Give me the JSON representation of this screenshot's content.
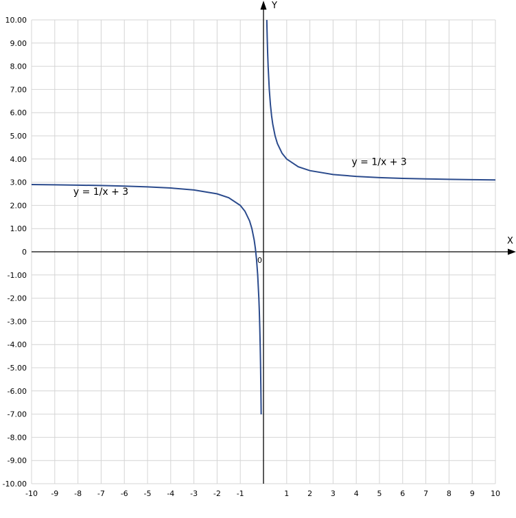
{
  "chart_data": {
    "type": "line",
    "x_axis_name": "X",
    "y_axis_name": "Y",
    "origin_label": "0",
    "xlim": [
      -10,
      10
    ],
    "ylim": [
      -10,
      10
    ],
    "x_ticks": [
      -10,
      -9,
      -8,
      -7,
      -6,
      -5,
      -4,
      -3,
      -2,
      -1,
      1,
      2,
      3,
      4,
      5,
      6,
      7,
      8,
      9,
      10
    ],
    "x_tick_labels": [
      "-10",
      "-9",
      "-8",
      "-7",
      "-6",
      "-5",
      "-4",
      "-3",
      "-2",
      "-1",
      "1",
      "2",
      "3",
      "4",
      "5",
      "6",
      "7",
      "8",
      "9",
      "10"
    ],
    "y_ticks": [
      10,
      9,
      8,
      7,
      6,
      5,
      4,
      3,
      2,
      1,
      0,
      -1,
      -2,
      -3,
      -4,
      -5,
      -6,
      -7,
      -8,
      -9,
      -10
    ],
    "y_tick_labels": [
      "10.00",
      "9.00",
      "8.00",
      "7.00",
      "6.00",
      "5.00",
      "4.00",
      "3.00",
      "2.00",
      "1.00",
      "0",
      "-1.00",
      "-2.00",
      "-3.00",
      "-4.00",
      "-5.00",
      "-6.00",
      "-7.00",
      "-8.00",
      "-9.00",
      "-10.00"
    ],
    "grid": true,
    "series": [
      {
        "function": "y = 1/x + 3",
        "color": "#2a4a8c",
        "branches": [
          {
            "x": [
              -10,
              -9,
              -8,
              -7,
              -6,
              -5,
              -4,
              -3,
              -2,
              -1.5,
              -1,
              -0.8,
              -0.6,
              -0.5,
              -0.4,
              -0.35,
              -0.3,
              -0.25,
              -0.2,
              -0.18,
              -0.16,
              -0.14,
              -0.13,
              -0.125,
              -0.12,
              -0.115,
              -0.11,
              -0.105,
              -0.1,
              -0.0999
            ]
          },
          {
            "x": [
              0.1429,
              0.15,
              0.16,
              0.18,
              0.2,
              0.25,
              0.3,
              0.35,
              0.4,
              0.5,
              0.6,
              0.8,
              1,
              1.5,
              2,
              3,
              4,
              5,
              6,
              7,
              8,
              9,
              10
            ]
          }
        ]
      }
    ],
    "annotations": [
      {
        "text": "y = 1/x + 3",
        "x": -8.2,
        "y": 2.45
      },
      {
        "text": "y = 1/x + 3",
        "x": 3.8,
        "y": 3.75
      }
    ]
  }
}
